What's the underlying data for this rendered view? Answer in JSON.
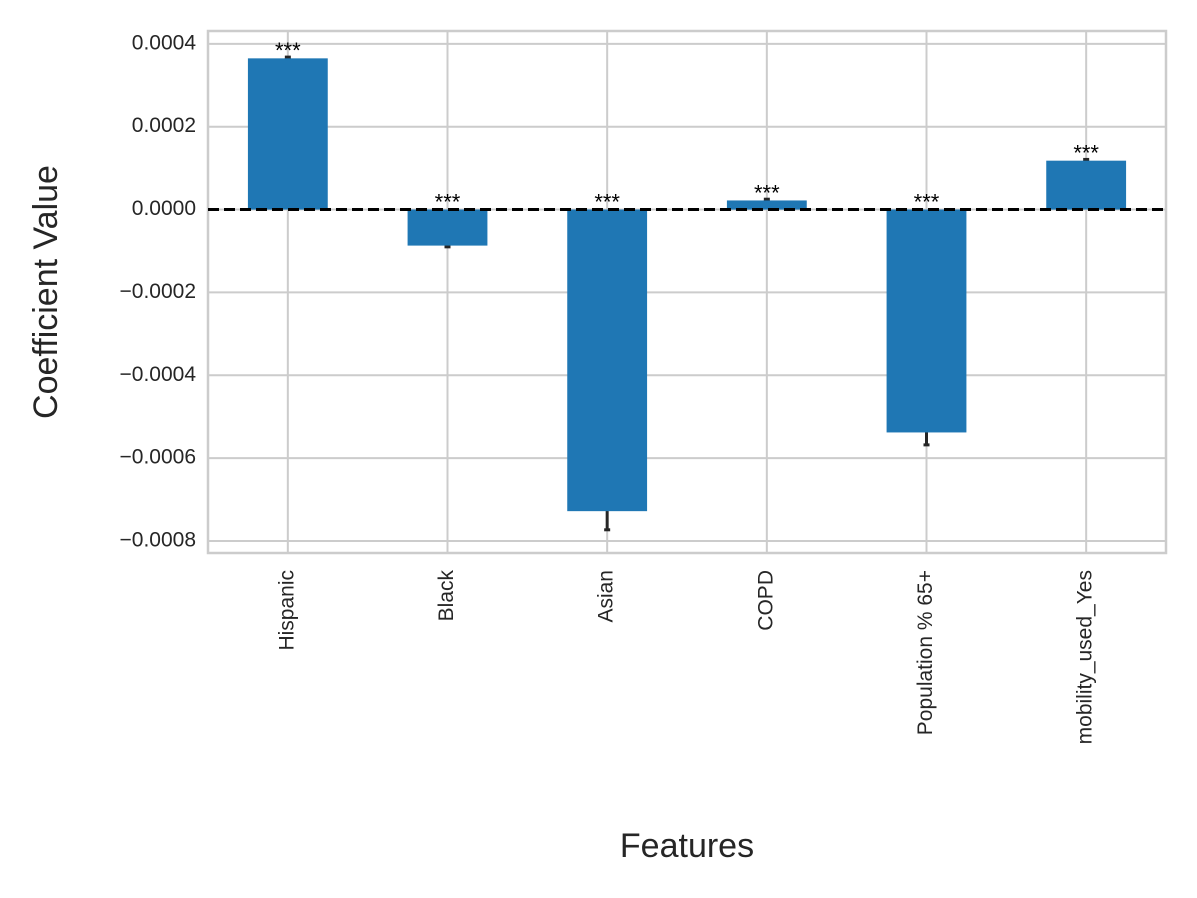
{
  "chart_data": {
    "type": "bar",
    "xlabel": "Features",
    "ylabel": "Coefficient Value",
    "categories": [
      "Hispanic",
      "Black",
      "Asian",
      "COPD",
      "Population % 65+",
      "mobility_used_Yes"
    ],
    "values": [
      0.000365,
      -8.7e-05,
      -0.000728,
      2.2e-05,
      -0.000538,
      0.000118
    ],
    "errors": [
      3e-06,
      3e-06,
      4.5e-05,
      3e-06,
      3e-05,
      3e-06
    ],
    "annotations": [
      "***",
      "***",
      "***",
      "***",
      "***",
      "***"
    ],
    "color": "#1f77b4",
    "error_color": "#262626",
    "ylim": [
      -0.000829,
      0.000431
    ],
    "yticks": [
      {
        "value": -0.0008,
        "label": "−0.0008"
      },
      {
        "value": -0.0006,
        "label": "−0.0006"
      },
      {
        "value": -0.0004,
        "label": "−0.0004"
      },
      {
        "value": -0.0002,
        "label": "−0.0002"
      },
      {
        "value": 0,
        "label": "0.0000"
      },
      {
        "value": 0.0002,
        "label": "0.0002"
      },
      {
        "value": 0.0004,
        "label": "0.0004"
      }
    ],
    "reference_line": 0,
    "grid": true
  }
}
